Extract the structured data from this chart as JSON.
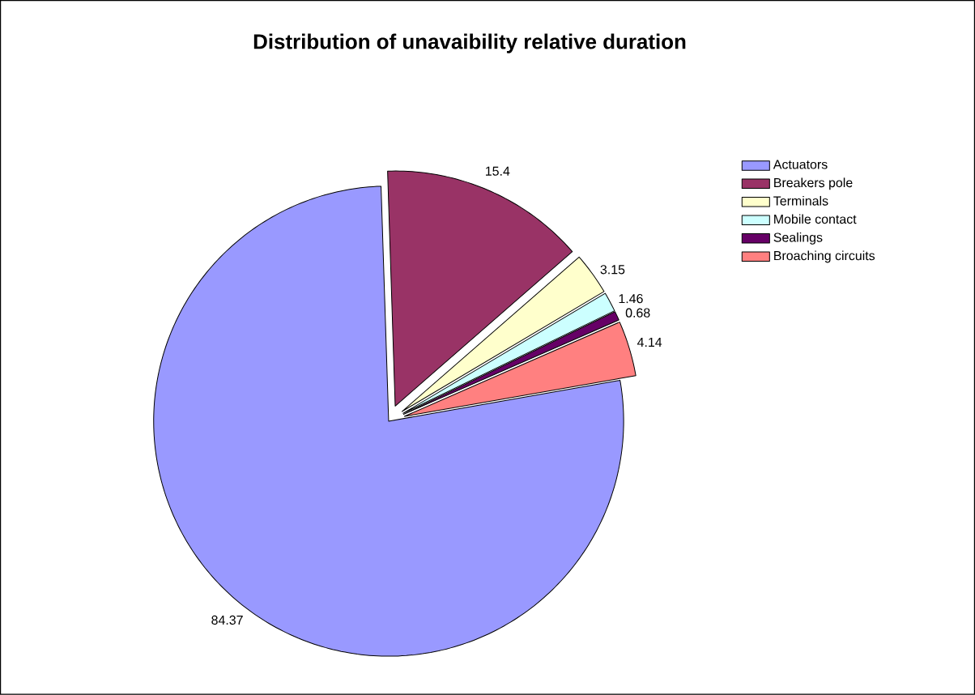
{
  "chart_data": {
    "type": "pie",
    "title": "Distribution of unavaibility relative duration",
    "categories": [
      "Actuators",
      "Breakers pole",
      "Terminals",
      "Mobile contact",
      "Sealings",
      "Broaching circuits"
    ],
    "values": [
      84.37,
      15.4,
      3.15,
      1.46,
      0.68,
      4.14
    ],
    "colors": [
      "#9999ff",
      "#993366",
      "#ffffcc",
      "#ccffff",
      "#660066",
      "#ff8080"
    ],
    "data_labels": true,
    "legend": "right"
  }
}
